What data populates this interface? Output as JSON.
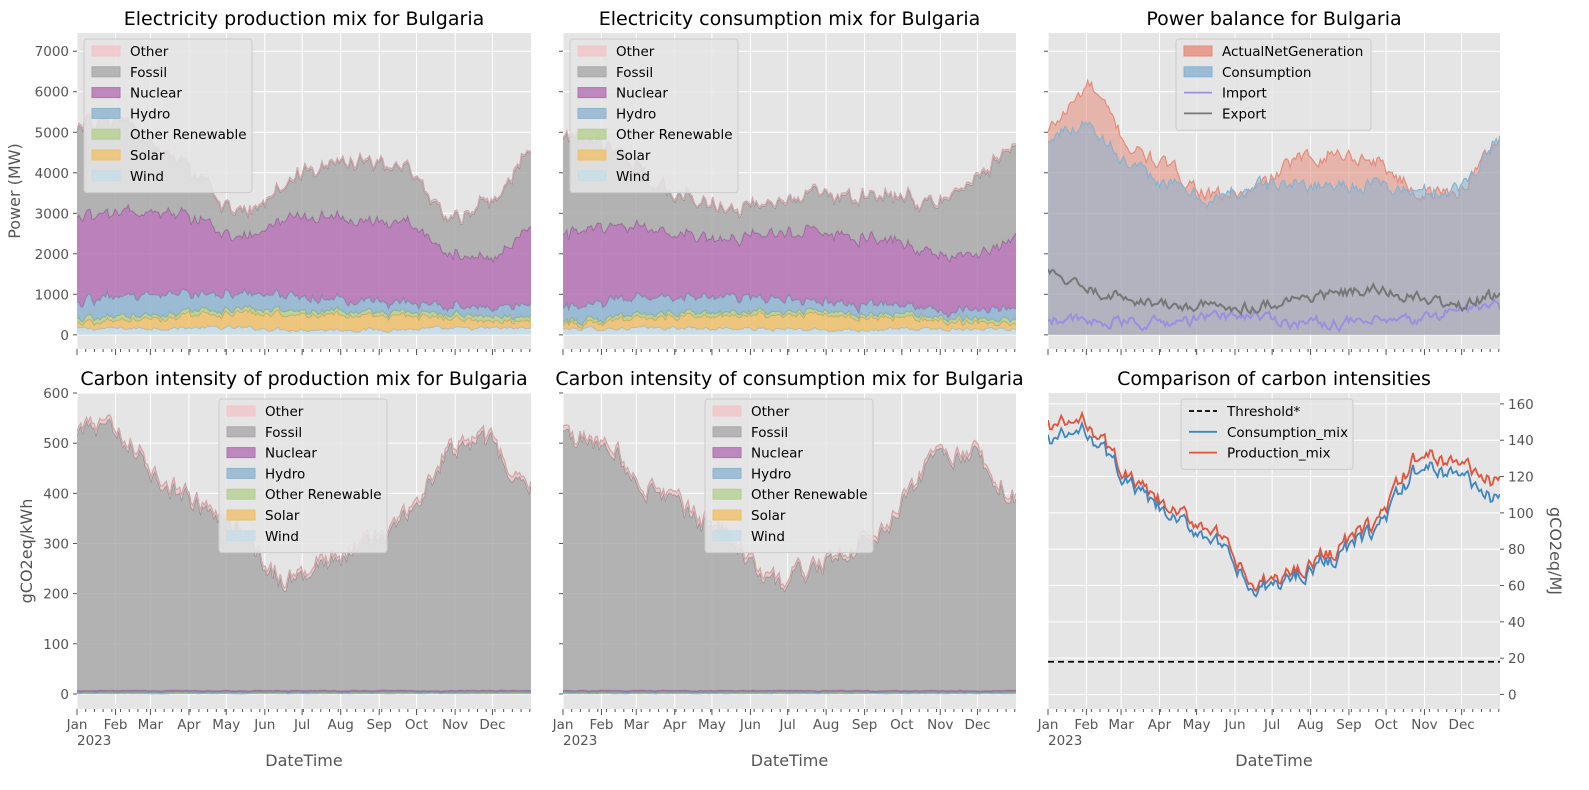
{
  "figure": {
    "xlabel": "DateTime",
    "year": "2023"
  },
  "colors": {
    "Other": "#f2c4c8",
    "Fossil": "#a9a9a9",
    "Nuclear": "#b370b3",
    "Hydro": "#8db4d0",
    "Other Renewable": "#b4cf90",
    "Solar": "#f0c06a",
    "Wind": "#c6dce6",
    "ActualNetGeneration": "#e58c7a",
    "Consumption": "#88b2cf",
    "Import": "#9b8fe0",
    "Export": "#777777",
    "Consumption_mix": "#3f86c0",
    "Production_mix": "#e2533b",
    "Threshold": "#000000",
    "axesbg": "#e5e5e5",
    "grid": "#ffffff"
  },
  "chart_data": [
    {
      "type": "area",
      "stacked": true,
      "title": "Electricity production mix for Bulgaria",
      "xlabel": "",
      "ylabel": "Power (MW)",
      "x_ticks": [
        "Jan",
        "Feb",
        "Mar",
        "Apr",
        "May",
        "Jun",
        "Jul",
        "Aug",
        "Sep",
        "Oct",
        "Nov",
        "Dec"
      ],
      "ylim": [
        -350,
        7450
      ],
      "y_ticks": [
        0,
        1000,
        2000,
        3000,
        4000,
        5000,
        6000,
        7000
      ],
      "legend_pos": "upper-left",
      "legend": [
        "Other",
        "Fossil",
        "Nuclear",
        "Hydro",
        "Other Renewable",
        "Solar",
        "Wind"
      ],
      "series_monthly": [
        {
          "name": "Wind",
          "values": [
            150,
            160,
            170,
            180,
            170,
            140,
            130,
            130,
            140,
            150,
            160,
            170
          ]
        },
        {
          "name": "Solar",
          "values": [
            150,
            200,
            250,
            320,
            360,
            380,
            400,
            380,
            320,
            240,
            160,
            120
          ]
        },
        {
          "name": "Other Renewable",
          "values": [
            100,
            100,
            100,
            100,
            100,
            100,
            100,
            100,
            100,
            100,
            100,
            100
          ]
        },
        {
          "name": "Hydro",
          "values": [
            380,
            480,
            500,
            420,
            380,
            380,
            300,
            260,
            230,
            220,
            230,
            300
          ]
        },
        {
          "name": "Nuclear",
          "values": [
            2050,
            2100,
            2000,
            1800,
            1300,
            1900,
            2000,
            2000,
            2000,
            1300,
            1200,
            1950
          ]
        },
        {
          "name": "Fossil",
          "values": [
            2200,
            2300,
            1400,
            1000,
            500,
            800,
            1300,
            1500,
            1300,
            800,
            1400,
            1900
          ]
        },
        {
          "name": "Other",
          "values": [
            40,
            40,
            40,
            40,
            40,
            40,
            40,
            40,
            40,
            40,
            40,
            40
          ]
        }
      ]
    },
    {
      "type": "area",
      "stacked": true,
      "title": "Electricity consumption mix for Bulgaria",
      "xlabel": "",
      "ylabel": "",
      "x_ticks": [
        "Jan",
        "Feb",
        "Mar",
        "Apr",
        "May",
        "Jun",
        "Jul",
        "Aug",
        "Sep",
        "Oct",
        "Nov",
        "Dec"
      ],
      "ylim": [
        -350,
        7450
      ],
      "y_ticks": [
        0,
        1000,
        2000,
        3000,
        4000,
        5000,
        6000,
        7000
      ],
      "legend_pos": "upper-left",
      "legend": [
        "Other",
        "Fossil",
        "Nuclear",
        "Hydro",
        "Other Renewable",
        "Solar",
        "Wind"
      ],
      "series_monthly": [
        {
          "name": "Wind",
          "values": [
            150,
            160,
            170,
            170,
            160,
            140,
            130,
            130,
            140,
            150,
            160,
            170
          ]
        },
        {
          "name": "Solar",
          "values": [
            130,
            170,
            230,
            290,
            320,
            340,
            360,
            340,
            290,
            210,
            140,
            110
          ]
        },
        {
          "name": "Other Renewable",
          "values": [
            90,
            90,
            90,
            90,
            90,
            90,
            90,
            90,
            90,
            90,
            90,
            90
          ]
        },
        {
          "name": "Hydro",
          "values": [
            330,
            420,
            450,
            380,
            350,
            350,
            270,
            230,
            210,
            200,
            210,
            270
          ]
        },
        {
          "name": "Nuclear",
          "values": [
            1800,
            1850,
            1700,
            1500,
            1400,
            1600,
            1700,
            1650,
            1600,
            1400,
            1300,
            1750
          ]
        },
        {
          "name": "Fossil",
          "values": [
            2300,
            2100,
            1200,
            900,
            700,
            700,
            900,
            1000,
            1100,
            1200,
            1900,
            2300
          ]
        },
        {
          "name": "Other",
          "values": [
            40,
            40,
            40,
            40,
            40,
            40,
            40,
            40,
            40,
            40,
            40,
            40
          ]
        }
      ]
    },
    {
      "type": "area",
      "title": "Power balance for Bulgaria",
      "xlabel": "",
      "ylabel": "",
      "x_ticks": [
        "Jan",
        "Feb",
        "Mar",
        "Apr",
        "May",
        "Jun",
        "Jul",
        "Aug",
        "Sep",
        "Oct",
        "Nov",
        "Dec"
      ],
      "ylim": [
        -350,
        7450
      ],
      "legend_pos": "upper-center",
      "legend": [
        "ActualNetGeneration",
        "Consumption",
        "Import",
        "Export"
      ],
      "series_monthly": [
        {
          "name": "ActualNetGeneration",
          "values": [
            5000,
            6200,
            4600,
            4100,
            3400,
            3500,
            4300,
            4500,
            4300,
            3500,
            3500,
            4900
          ]
        },
        {
          "name": "Consumption",
          "values": [
            4800,
            5300,
            4100,
            3700,
            3300,
            3700,
            3700,
            3700,
            3700,
            3500,
            3600,
            4900
          ]
        },
        {
          "name": "Import",
          "values": [
            450,
            300,
            300,
            300,
            450,
            500,
            300,
            300,
            300,
            350,
            650,
            700
          ]
        },
        {
          "name": "Export",
          "values": [
            1500,
            1100,
            900,
            700,
            700,
            700,
            900,
            1000,
            1100,
            900,
            700,
            1000
          ]
        }
      ]
    },
    {
      "type": "area",
      "stacked": true,
      "title": "Carbon intensity of production mix for Bulgaria",
      "xlabel": "DateTime",
      "ylabel": "gCO2eq/kWh",
      "x_ticks": [
        "Jan",
        "Feb",
        "Mar",
        "Apr",
        "May",
        "Jun",
        "Jul",
        "Aug",
        "Sep",
        "Oct",
        "Nov",
        "Dec"
      ],
      "ylim": [
        -30,
        600
      ],
      "y_ticks": [
        0,
        100,
        200,
        300,
        400,
        500,
        600
      ],
      "legend_pos": "upper-center",
      "legend": [
        "Other",
        "Fossil",
        "Nuclear",
        "Hydro",
        "Other Renewable",
        "Solar",
        "Wind"
      ],
      "series_monthly": [
        {
          "name": "Wind",
          "values": [
            1,
            1,
            1,
            1,
            1,
            1,
            1,
            1,
            1,
            1,
            1,
            1
          ]
        },
        {
          "name": "Solar",
          "values": [
            1,
            1,
            1,
            1,
            1,
            1,
            1,
            1,
            1,
            1,
            1,
            1
          ]
        },
        {
          "name": "Other Renewable",
          "values": [
            1,
            1,
            1,
            1,
            1,
            1,
            1,
            1,
            1,
            1,
            1,
            1
          ]
        },
        {
          "name": "Hydro",
          "values": [
            1,
            1,
            1,
            1,
            1,
            1,
            1,
            1,
            1,
            1,
            1,
            1
          ]
        },
        {
          "name": "Nuclear",
          "values": [
            3,
            3,
            3,
            3,
            3,
            3,
            3,
            3,
            3,
            3,
            3,
            3
          ]
        },
        {
          "name": "Fossil",
          "values": [
            520,
            510,
            420,
            360,
            320,
            210,
            250,
            290,
            350,
            480,
            490,
            410
          ]
        },
        {
          "name": "Other",
          "values": [
            8,
            8,
            8,
            8,
            8,
            8,
            8,
            8,
            8,
            8,
            8,
            8
          ]
        }
      ]
    },
    {
      "type": "area",
      "stacked": true,
      "title": "Carbon intensity of consumption mix for Bulgaria",
      "xlabel": "DateTime",
      "ylabel": "",
      "x_ticks": [
        "Jan",
        "Feb",
        "Mar",
        "Apr",
        "May",
        "Jun",
        "Jul",
        "Aug",
        "Sep",
        "Oct",
        "Nov",
        "Dec"
      ],
      "ylim": [
        -30,
        600
      ],
      "y_ticks": [
        0,
        100,
        200,
        300,
        400,
        500,
        600
      ],
      "legend_pos": "upper-center",
      "legend": [
        "Other",
        "Fossil",
        "Nuclear",
        "Hydro",
        "Other Renewable",
        "Solar",
        "Wind"
      ],
      "series_monthly": [
        {
          "name": "Wind",
          "values": [
            1,
            1,
            1,
            1,
            1,
            1,
            1,
            1,
            1,
            1,
            1,
            1
          ]
        },
        {
          "name": "Solar",
          "values": [
            1,
            1,
            1,
            1,
            1,
            1,
            1,
            1,
            1,
            1,
            1,
            1
          ]
        },
        {
          "name": "Other Renewable",
          "values": [
            1,
            1,
            1,
            1,
            1,
            1,
            1,
            1,
            1,
            1,
            1,
            1
          ]
        },
        {
          "name": "Hydro",
          "values": [
            1,
            1,
            1,
            1,
            1,
            1,
            1,
            1,
            1,
            1,
            1,
            1
          ]
        },
        {
          "name": "Nuclear",
          "values": [
            3,
            3,
            3,
            3,
            3,
            3,
            3,
            3,
            3,
            3,
            3,
            3
          ]
        },
        {
          "name": "Fossil",
          "values": [
            505,
            490,
            410,
            350,
            310,
            200,
            240,
            280,
            340,
            460,
            470,
            380
          ]
        },
        {
          "name": "Other",
          "values": [
            8,
            8,
            8,
            8,
            8,
            8,
            8,
            8,
            8,
            8,
            8,
            8
          ]
        }
      ]
    },
    {
      "type": "line",
      "title": "Comparison of carbon intensities",
      "xlabel": "DateTime",
      "ylabel": "gCO2eq/MJ",
      "y_axis_side": "right",
      "x_ticks": [
        "Jan",
        "Feb",
        "Mar",
        "Apr",
        "May",
        "Jun",
        "Jul",
        "Aug",
        "Sep",
        "Oct",
        "Nov",
        "Dec"
      ],
      "ylim": [
        -8,
        166
      ],
      "y_ticks": [
        0,
        20,
        40,
        60,
        80,
        100,
        120,
        140,
        160
      ],
      "legend_pos": "upper-center",
      "legend": [
        "Threshold*",
        "Consumption_mix",
        "Production_mix"
      ],
      "threshold": 18,
      "series_monthly": [
        {
          "name": "Production_mix",
          "values": [
            148,
            150,
            118,
            100,
            92,
            58,
            68,
            80,
            95,
            132,
            128,
            115
          ]
        },
        {
          "name": "Consumption_mix",
          "values": [
            140,
            145,
            115,
            96,
            87,
            55,
            65,
            76,
            91,
            125,
            122,
            105
          ]
        }
      ]
    }
  ]
}
